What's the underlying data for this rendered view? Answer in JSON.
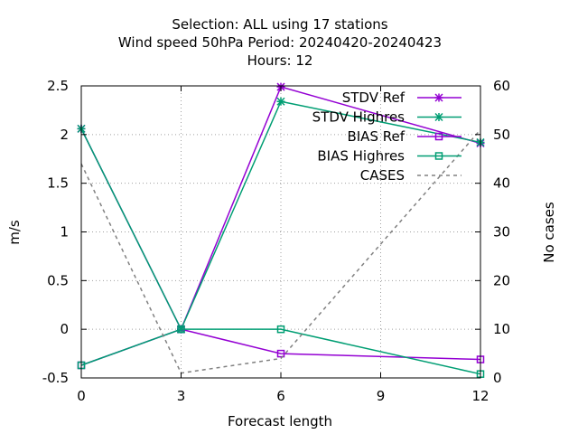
{
  "chart_data": {
    "type": "line",
    "title_lines": [
      "Selection: ALL using    17 stations",
      "Wind speed 50hPa   Period: 20240420-20240423",
      "Hours:  12"
    ],
    "xlabel": "Forecast length",
    "ylabel": "m/s",
    "y2label": "No cases",
    "x": [
      0,
      3,
      6,
      9,
      12
    ],
    "xlim": [
      0,
      12
    ],
    "ylim": [
      -0.5,
      2.5
    ],
    "y2lim": [
      0,
      60
    ],
    "xticks": [
      "0",
      "3",
      "6",
      "9",
      "12"
    ],
    "yticks": [
      "-0.5",
      "0",
      "0.5",
      "1",
      "1.5",
      "2",
      "2.5"
    ],
    "y2ticks": [
      "0",
      "10",
      "20",
      "30",
      "40",
      "50",
      "60"
    ],
    "grid": true,
    "legend_position": "top-right",
    "series": [
      {
        "name": "STDV Ref",
        "axis": "y",
        "color": "#9400d3",
        "marker": "star",
        "dash": false,
        "points": [
          [
            0,
            2.06
          ],
          [
            3,
            0.0
          ],
          [
            6,
            2.49
          ],
          [
            12,
            1.91
          ]
        ]
      },
      {
        "name": "STDV Highres",
        "axis": "y",
        "color": "#009e73",
        "marker": "star",
        "dash": false,
        "points": [
          [
            0,
            2.06
          ],
          [
            3,
            0.0
          ],
          [
            6,
            2.34
          ],
          [
            12,
            1.92
          ]
        ]
      },
      {
        "name": "BIAS Ref",
        "axis": "y",
        "color": "#9400d3",
        "marker": "square",
        "dash": false,
        "points": [
          [
            0,
            -0.37
          ],
          [
            3,
            0.0
          ],
          [
            6,
            -0.25
          ],
          [
            12,
            -0.31
          ]
        ]
      },
      {
        "name": "BIAS Highres",
        "axis": "y",
        "color": "#009e73",
        "marker": "square",
        "dash": false,
        "points": [
          [
            0,
            -0.37
          ],
          [
            3,
            0.0
          ],
          [
            6,
            0.0
          ],
          [
            12,
            -0.46
          ]
        ]
      },
      {
        "name": "CASES",
        "axis": "y2",
        "color": "#808080",
        "marker": "none",
        "dash": true,
        "points": [
          [
            0,
            44
          ],
          [
            3,
            1
          ],
          [
            6,
            4
          ],
          [
            12,
            51
          ]
        ]
      }
    ]
  }
}
